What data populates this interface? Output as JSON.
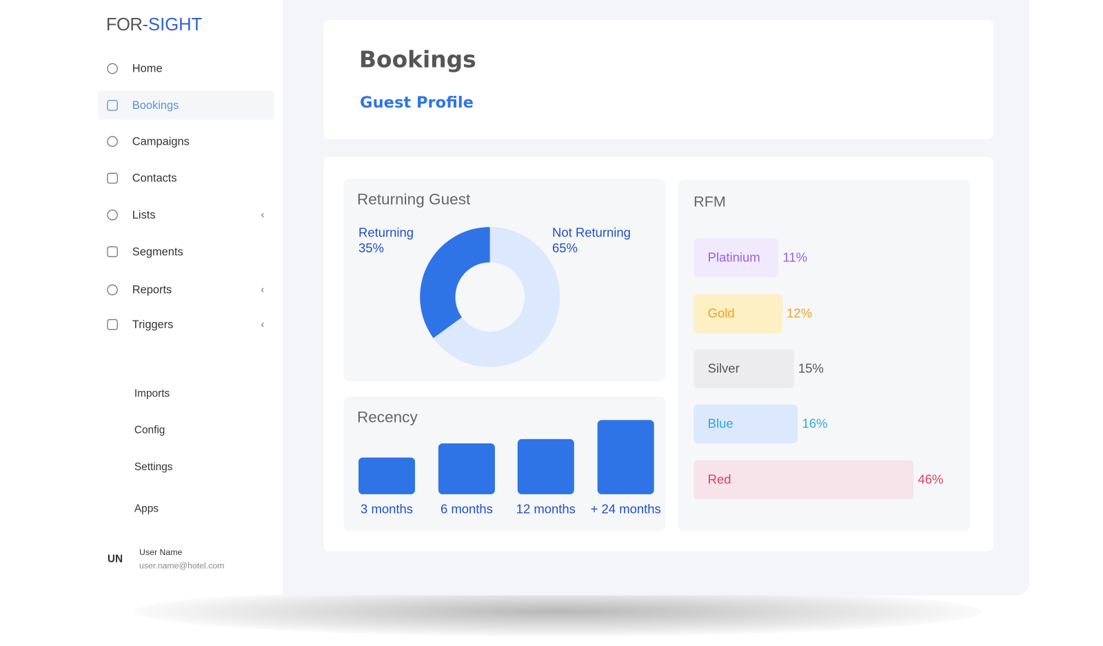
{
  "logo": {
    "left": "FOR",
    "right": "-SIGHT"
  },
  "nav": [
    {
      "label": "Home"
    },
    {
      "label": "Bookings",
      "active": true
    },
    {
      "label": "Campaigns"
    },
    {
      "label": "Contacts"
    },
    {
      "label": "Lists",
      "submenu": true
    },
    {
      "label": "Segments"
    },
    {
      "label": "Reports",
      "submenu": true
    },
    {
      "label": "Triggers",
      "submenu": true
    }
  ],
  "secondary_nav": [
    "Imports",
    "Config",
    "Settings",
    "Apps"
  ],
  "user": {
    "initials": "UN",
    "name": "User Name",
    "email": "user.name@hotel.com"
  },
  "header": {
    "title": "Bookings",
    "subtitle": "Guest Profile"
  },
  "chart_data": [
    {
      "type": "pie",
      "title": "Returning Guest",
      "categories": [
        "Returning",
        "Not Returning"
      ],
      "values": [
        35,
        65
      ],
      "value_labels": [
        "35%",
        "65%"
      ],
      "colors": [
        "#2f74e6",
        "#dce8fc"
      ]
    },
    {
      "type": "bar",
      "title": "Recency",
      "categories": [
        "3 months",
        "6 months",
        "12 months",
        "+ 24 months"
      ],
      "values": [
        52,
        72,
        78,
        105
      ],
      "ylim": [
        0,
        105
      ],
      "color": "#2f74e6"
    },
    {
      "type": "hbar",
      "title": "RFM",
      "categories": [
        "Platinium",
        "Gold",
        "Silver",
        "Blue",
        "Red"
      ],
      "values": [
        11,
        12,
        15,
        16,
        46
      ],
      "value_labels": [
        "11%",
        "12%",
        "15%",
        "16%",
        "46%"
      ],
      "fills": [
        "#f1eafd",
        "#fdf0c4",
        "#ececee",
        "#dce9fd",
        "#f7e3ea"
      ],
      "colors": [
        "#9b5de5",
        "#f0a020",
        "#555555",
        "#2ca7e0",
        "#e0405a"
      ]
    }
  ]
}
